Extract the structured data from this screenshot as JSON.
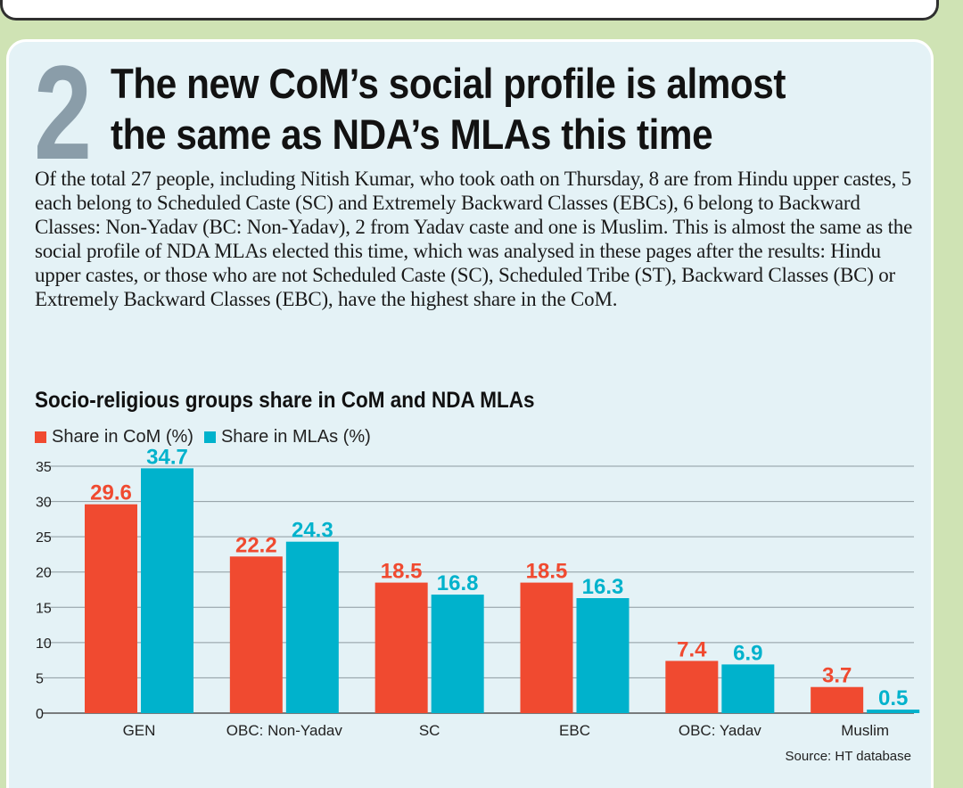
{
  "number": "2",
  "headline": "The new CoM’s social profile is almost the same as NDA’s MLAs this time",
  "body": "Of the total 27 people, including Nitish Kumar, who took oath on Thursday, 8 are from Hindu upper castes, 5 each belong to Scheduled Caste (SC) and Extremely Backward Classes (EBCs), 6 belong to Backward Classes: Non-Yadav (BC: Non-Yadav), 2 from Yadav caste and one is Muslim. This is almost the same as the social profile of NDA MLAs elected this time, which was analysed in these pages after the results: Hindu upper castes, or those who are not Scheduled Caste (SC), Scheduled Tribe (ST), Backward Classes (BC) or Extremely Backward Classes (EBC), have the highest share in the CoM.",
  "source": "Source: HT database",
  "colors": {
    "com": "#f04a30",
    "mla": "#00b2cc"
  },
  "chart_data": {
    "type": "bar",
    "title": "Socio-religious  groups share in CoM and NDA MLAs",
    "categories": [
      "GEN",
      "OBC: Non-Yadav",
      "SC",
      "EBC",
      "OBC: Yadav",
      "Muslim"
    ],
    "series": [
      {
        "name": "Share in CoM (%)",
        "values": [
          29.6,
          22.2,
          18.5,
          18.5,
          7.4,
          3.7
        ]
      },
      {
        "name": "Share in MLAs (%)",
        "values": [
          34.7,
          24.3,
          16.8,
          16.3,
          6.9,
          0.5
        ]
      }
    ],
    "yticks": [
      0,
      5,
      10,
      15,
      20,
      25,
      30,
      35
    ],
    "ylim": [
      0,
      35
    ],
    "xlabel": "",
    "ylabel": "",
    "grid": true,
    "legend": "top-left"
  }
}
